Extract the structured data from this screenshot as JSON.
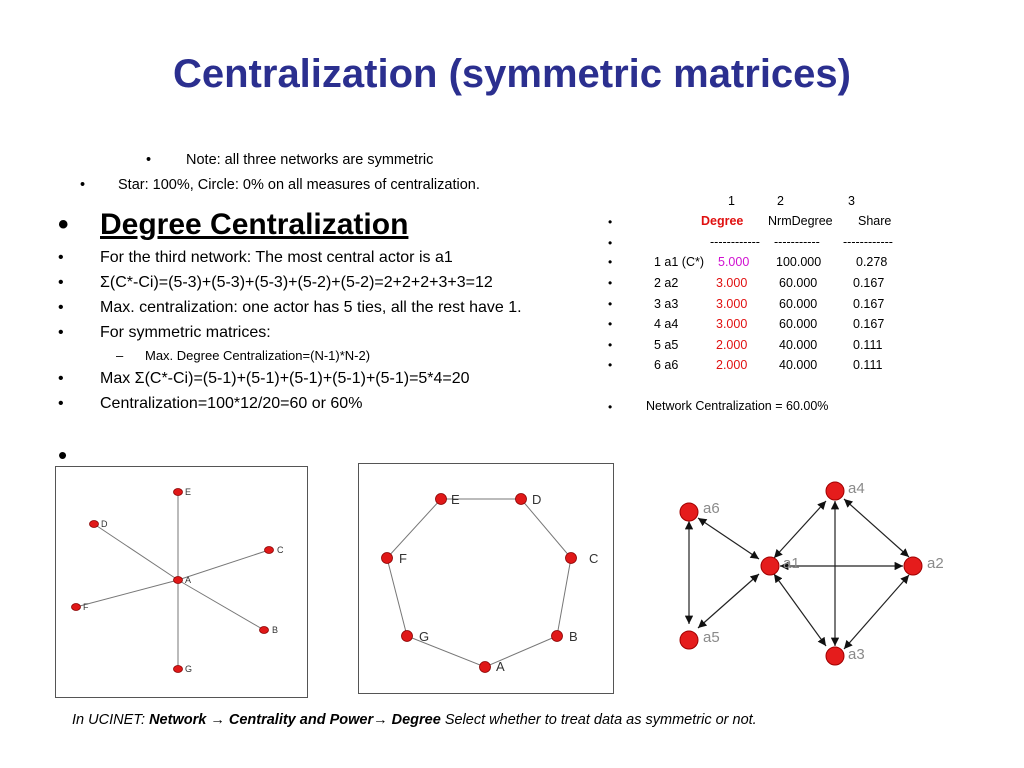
{
  "title": "Centralization (symmetric matrices)",
  "bullets_top": [
    "Note: all three networks are symmetric",
    "Star: 100%, Circle: 0% on all measures of centralization."
  ],
  "degree": {
    "heading": "Degree Centralization",
    "items": [
      "For the third network:  The most central actor is a1",
      "Σ(C*-Ci)=(5-3)+(5-3)+(5-3)+(5-2)+(5-2)=2+2+2+3+3=12",
      "Max. centralization: one actor has 5 ties, all the rest have 1.",
      "For symmetric matrices:",
      "Max. Degree Centralization=(N-1)*N-2)",
      "Max Σ(C*-Ci)=(5-1)+(5-1)+(5-1)+(5-1)+(5-1)=5*4=20",
      "Centralization=100*12/20=60  or     60%"
    ]
  },
  "table": {
    "col_nums": [
      "1",
      "2",
      "3"
    ],
    "headers": [
      "Degree",
      "NrmDegree",
      "Share"
    ],
    "dashes": [
      "------------",
      "-----------",
      "------------"
    ],
    "rows": [
      {
        "label": "1 a1 (C*)",
        "degree": "5.000",
        "nrm": "100.000",
        "share": "0.278"
      },
      {
        "label": "2 a2",
        "degree": "3.000",
        "nrm": "60.000",
        "share": "0.167"
      },
      {
        "label": "3 a3",
        "degree": "3.000",
        "nrm": "60.000",
        "share": "0.167"
      },
      {
        "label": "4 a4",
        "degree": "3.000",
        "nrm": "60.000",
        "share": "0.167"
      },
      {
        "label": "5 a5",
        "degree": "2.000",
        "nrm": "40.000",
        "share": "0.111"
      },
      {
        "label": "6 a6",
        "degree": "2.000",
        "nrm": "40.000",
        "share": "0.111"
      }
    ],
    "network_centralization": "Network Centralization = 60.00%"
  },
  "bullet_glyph": "•",
  "dash_glyph": "–",
  "networks": {
    "star_labels": [
      "E",
      "D",
      "C",
      "A",
      "F",
      "B",
      "G"
    ],
    "circle_labels": [
      "E",
      "D",
      "F",
      "C",
      "G",
      "B",
      "A"
    ],
    "directed_labels": [
      "a6",
      "a4",
      "a1",
      "a2",
      "a5",
      "a3"
    ]
  },
  "caption": {
    "prefix": "In UCINET: ",
    "menu1": "Network",
    "arrow": " → ",
    "menu2": "Centrality and Power",
    "arrow2": "→ ",
    "menu3": "Degree",
    "suffix": "  Select whether to treat data as symmetric or not."
  },
  "colors": {
    "title": "#2b2f8f",
    "node": "#e01818",
    "highlight_red": "#e01010",
    "highlight_magenta": "#d010d0"
  }
}
